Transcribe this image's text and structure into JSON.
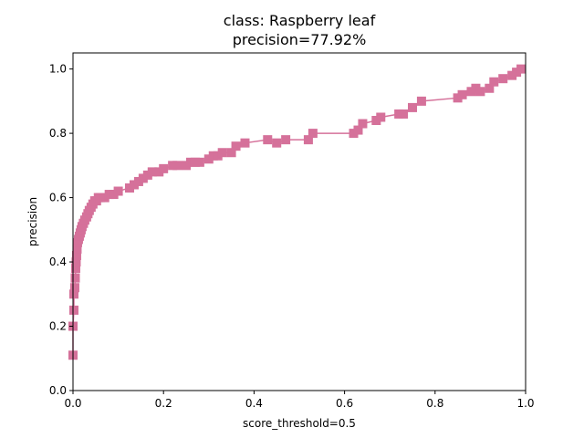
{
  "chart_data": {
    "type": "line",
    "title": "class: Raspberry leaf",
    "subtitle": "precision=77.92%",
    "xlabel": "score_threshold=0.5",
    "ylabel": "precision",
    "xlim": [
      0,
      1
    ],
    "ylim": [
      0,
      1.05
    ],
    "x_ticks": [
      "0.0",
      "0.2",
      "0.4",
      "0.6",
      "0.8",
      "1.0"
    ],
    "y_ticks": [
      "0.0",
      "0.2",
      "0.4",
      "0.6",
      "0.8",
      "1.0"
    ],
    "grid": false,
    "series": [
      {
        "color": "#d5719a",
        "marker": "square",
        "x": [
          0.0,
          0.0,
          0.002,
          0.002,
          0.004,
          0.005,
          0.006,
          0.007,
          0.008,
          0.009,
          0.01,
          0.012,
          0.014,
          0.016,
          0.018,
          0.02,
          0.023,
          0.026,
          0.03,
          0.033,
          0.036,
          0.04,
          0.044,
          0.048,
          0.052,
          0.056,
          0.06,
          0.07,
          0.08,
          0.09,
          0.1,
          0.125,
          0.135,
          0.145,
          0.155,
          0.165,
          0.175,
          0.19,
          0.2,
          0.22,
          0.23,
          0.25,
          0.26,
          0.27,
          0.28,
          0.3,
          0.31,
          0.32,
          0.33,
          0.35,
          0.36,
          0.38,
          0.43,
          0.45,
          0.47,
          0.52,
          0.53,
          0.62,
          0.63,
          0.64,
          0.67,
          0.68,
          0.72,
          0.73,
          0.75,
          0.77,
          0.85,
          0.86,
          0.88,
          0.89,
          0.9,
          0.92,
          0.93,
          0.95,
          0.97,
          0.98,
          0.99
        ],
        "y": [
          0.11,
          0.2,
          0.25,
          0.3,
          0.32,
          0.35,
          0.38,
          0.4,
          0.42,
          0.44,
          0.46,
          0.47,
          0.48,
          0.49,
          0.5,
          0.51,
          0.52,
          0.53,
          0.54,
          0.55,
          0.56,
          0.57,
          0.58,
          0.59,
          0.59,
          0.6,
          0.6,
          0.6,
          0.61,
          0.61,
          0.62,
          0.63,
          0.64,
          0.65,
          0.66,
          0.67,
          0.68,
          0.68,
          0.69,
          0.7,
          0.7,
          0.7,
          0.71,
          0.71,
          0.71,
          0.72,
          0.73,
          0.73,
          0.74,
          0.74,
          0.76,
          0.77,
          0.78,
          0.77,
          0.78,
          0.78,
          0.8,
          0.8,
          0.81,
          0.83,
          0.84,
          0.85,
          0.86,
          0.86,
          0.88,
          0.9,
          0.91,
          0.92,
          0.93,
          0.94,
          0.93,
          0.94,
          0.96,
          0.97,
          0.98,
          0.99,
          1.0
        ]
      }
    ]
  }
}
